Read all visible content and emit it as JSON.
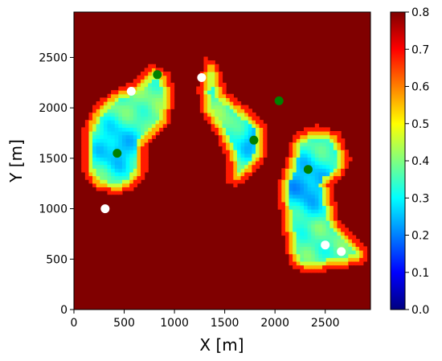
{
  "chart_data": {
    "type": "heatmap",
    "title": "",
    "xlabel": "X [m]",
    "ylabel": "Y [m]",
    "xlim": [
      0,
      2950
    ],
    "ylim": [
      0,
      2950
    ],
    "xticks": [
      0,
      500,
      1000,
      1500,
      2000,
      2500
    ],
    "yticks": [
      0,
      500,
      1000,
      1500,
      2000,
      2500
    ],
    "colorbar": {
      "colormap": "jet",
      "range": [
        0.0,
        0.8
      ],
      "ticks": [
        "0.0",
        "0.1",
        "0.2",
        "0.3",
        "0.4",
        "0.5",
        "0.6",
        "0.7",
        "0.8"
      ]
    },
    "background_value": 0.8,
    "grid": false,
    "regions": [
      {
        "polygon": [
          [
            820,
            2420
          ],
          [
            960,
            2330
          ],
          [
            1000,
            2100
          ],
          [
            950,
            1850
          ],
          [
            720,
            1620
          ],
          [
            720,
            1350
          ],
          [
            560,
            1170
          ],
          [
            400,
            1150
          ],
          [
            220,
            1180
          ],
          [
            90,
            1350
          ],
          [
            90,
            1800
          ],
          [
            200,
            2020
          ],
          [
            380,
            2170
          ],
          [
            600,
            2260
          ],
          [
            760,
            2420
          ]
        ],
        "min_value": 0.22,
        "center": [
          430,
          1610
        ],
        "falloff": 400
      },
      {
        "polygon": [
          [
            1300,
            2500
          ],
          [
            1440,
            2440
          ],
          [
            1510,
            2170
          ],
          [
            1740,
            1990
          ],
          [
            1900,
            1840
          ],
          [
            1930,
            1530
          ],
          [
            1760,
            1330
          ],
          [
            1620,
            1230
          ],
          [
            1530,
            1250
          ],
          [
            1530,
            1470
          ],
          [
            1420,
            1720
          ],
          [
            1270,
            1950
          ],
          [
            1230,
            2170
          ],
          [
            1270,
            2360
          ]
        ],
        "min_value": 0.22,
        "center": [
          1790,
          1680
        ],
        "falloff": 300
      },
      {
        "polygon": [
          [
            2170,
            1730
          ],
          [
            2400,
            1830
          ],
          [
            2640,
            1760
          ],
          [
            2750,
            1500
          ],
          [
            2680,
            1320
          ],
          [
            2560,
            1230
          ],
          [
            2640,
            880
          ],
          [
            2900,
            620
          ],
          [
            2900,
            470
          ],
          [
            2640,
            400
          ],
          [
            2340,
            370
          ],
          [
            2180,
            400
          ],
          [
            2120,
            540
          ],
          [
            2050,
            950
          ],
          [
            2030,
            1260
          ],
          [
            2110,
            1470
          ]
        ],
        "min_value": 0.2,
        "center": [
          2300,
          1240
        ],
        "falloff": 420
      }
    ],
    "markers": [
      {
        "color": "#ffffff",
        "points": [
          [
            570,
            2165
          ],
          [
            1270,
            2300
          ],
          [
            310,
            1000
          ],
          [
            2500,
            640
          ],
          [
            2660,
            575
          ]
        ]
      },
      {
        "color": "#008000",
        "points": [
          [
            830,
            2330
          ],
          [
            2040,
            2070
          ],
          [
            430,
            1550
          ],
          [
            1790,
            1680
          ],
          [
            2330,
            1390
          ]
        ]
      }
    ]
  }
}
